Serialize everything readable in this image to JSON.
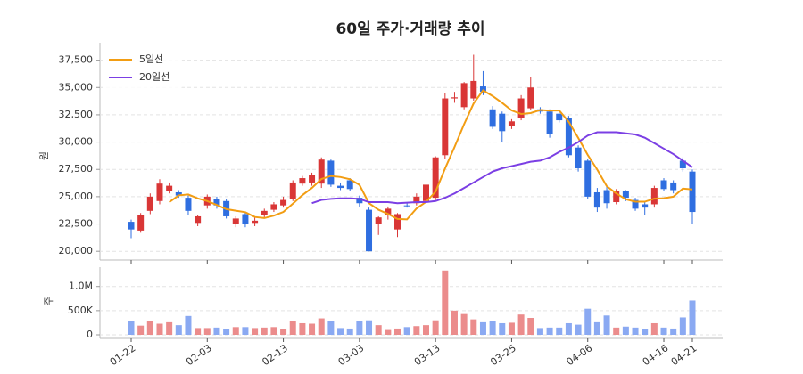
{
  "chart_data": {
    "type": "candlestick",
    "title": "60일 주가·거래량 추이",
    "ylabel": "원",
    "categories": [
      "01-22",
      null,
      null,
      null,
      null,
      null,
      null,
      null,
      "02-03",
      null,
      null,
      null,
      null,
      null,
      null,
      null,
      "02-13",
      null,
      null,
      null,
      null,
      null,
      null,
      null,
      "03-03",
      null,
      null,
      null,
      null,
      null,
      null,
      null,
      "03-13",
      null,
      null,
      null,
      null,
      null,
      null,
      null,
      "03-25",
      null,
      null,
      null,
      null,
      null,
      null,
      null,
      "04-06",
      null,
      null,
      null,
      null,
      null,
      null,
      null,
      "04-16",
      null,
      null,
      "04-21"
    ],
    "open": [
      22700,
      21900,
      23700,
      24600,
      25500,
      25400,
      24900,
      22600,
      24200,
      24800,
      24600,
      22500,
      23400,
      22600,
      23300,
      23800,
      24200,
      24800,
      26200,
      26300,
      26200,
      28300,
      26000,
      26500,
      24900,
      23800,
      22500,
      23300,
      22000,
      24200,
      24400,
      24600,
      24900,
      28800,
      34000,
      33200,
      34000,
      35100,
      33000,
      32600,
      31500,
      32200,
      33100,
      33000,
      32800,
      32600,
      32200,
      29500,
      28300,
      25400,
      25600,
      24500,
      25500,
      24700,
      24300,
      24300,
      26500,
      26300,
      28300,
      27300
    ],
    "high": [
      22900,
      23500,
      25300,
      26600,
      26300,
      25600,
      25100,
      23300,
      25200,
      25000,
      24800,
      23200,
      23600,
      23100,
      23900,
      24500,
      25000,
      26500,
      26900,
      27200,
      28600,
      28400,
      26300,
      26700,
      25100,
      24000,
      23200,
      24100,
      23500,
      24500,
      25300,
      26400,
      28700,
      34500,
      34600,
      35500,
      38000,
      36500,
      33300,
      32800,
      32100,
      34300,
      36000,
      33200,
      33000,
      32800,
      32400,
      29700,
      28500,
      25800,
      25900,
      25700,
      25600,
      24900,
      24500,
      26000,
      26700,
      26500,
      28600,
      27500
    ],
    "low": [
      21200,
      21700,
      23400,
      24300,
      25300,
      24900,
      23300,
      22300,
      23900,
      23900,
      23000,
      22200,
      22200,
      22300,
      23100,
      23600,
      24000,
      24600,
      26000,
      26000,
      25800,
      25900,
      25600,
      25500,
      24100,
      20000,
      21500,
      22900,
      21300,
      24000,
      24200,
      24400,
      24700,
      28500,
      33600,
      33000,
      33800,
      34300,
      31200,
      30000,
      31200,
      32000,
      32900,
      32600,
      30400,
      31800,
      28600,
      27300,
      24800,
      23600,
      23900,
      24300,
      24600,
      23700,
      23300,
      24000,
      25500,
      25300,
      27300,
      22500
    ],
    "close": [
      22000,
      23300,
      25000,
      26200,
      26000,
      25100,
      23700,
      23200,
      25000,
      24200,
      23200,
      23000,
      22500,
      22800,
      23700,
      24300,
      24700,
      26300,
      26700,
      27000,
      28400,
      26100,
      25800,
      25700,
      24400,
      20000,
      23100,
      23900,
      23400,
      24200,
      25000,
      26100,
      28600,
      34000,
      34100,
      35400,
      35600,
      34600,
      31400,
      31000,
      31900,
      34000,
      35000,
      32800,
      30700,
      32000,
      28800,
      27600,
      25000,
      24000,
      24400,
      25500,
      24900,
      23900,
      24000,
      25800,
      25700,
      25600,
      27600,
      23600
    ],
    "up_color": "#d93636",
    "down_color": "#2f6ee0",
    "series": [
      {
        "name": "5일선",
        "color": "#f29d13",
        "values": [
          null,
          null,
          null,
          null,
          24500,
          25120,
          25200,
          24840,
          24600,
          24240,
          23860,
          23720,
          23580,
          23140,
          23040,
          23260,
          23600,
          24360,
          25140,
          25800,
          26620,
          26900,
          26800,
          26600,
          26080,
          24400,
          23800,
          23420,
          22960,
          22920,
          23920,
          24520,
          25460,
          27580,
          29560,
          31640,
          33540,
          34740,
          34220,
          33600,
          32900,
          32580,
          32660,
          32940,
          32880,
          32900,
          31860,
          30380,
          28820,
          27480,
          25960,
          25300,
          24760,
          24540,
          24540,
          24820,
          24860,
          25000,
          25740,
          25660
        ]
      },
      {
        "name": "20일선",
        "color": "#7b3fe4",
        "values": [
          null,
          null,
          null,
          null,
          null,
          null,
          null,
          null,
          null,
          null,
          null,
          null,
          null,
          null,
          null,
          null,
          null,
          null,
          null,
          24400,
          24700,
          24800,
          24850,
          24850,
          24800,
          24500,
          24500,
          24500,
          24400,
          24450,
          24500,
          24500,
          24600,
          24900,
          25300,
          25800,
          26300,
          26800,
          27300,
          27600,
          27800,
          28000,
          28200,
          28300,
          28600,
          29100,
          29500,
          30000,
          30600,
          30900,
          30900,
          30900,
          30800,
          30700,
          30400,
          29900,
          29400,
          28900,
          28300,
          27700
        ]
      }
    ],
    "ylim": [
      19200,
      39100
    ],
    "yticks": [
      {
        "value": 20000,
        "label": "20,000"
      },
      {
        "value": 22500,
        "label": "22,500"
      },
      {
        "value": 25000,
        "label": "25,000"
      },
      {
        "value": 27500,
        "label": "27,500"
      },
      {
        "value": 30000,
        "label": "30,000"
      },
      {
        "value": 32500,
        "label": "32,500"
      },
      {
        "value": 35000,
        "label": "35,000"
      },
      {
        "value": 37500,
        "label": "37,500"
      }
    ],
    "grid": true,
    "legend": "upper left",
    "volume": {
      "ylabel": "주",
      "up_color": "#eb8c8c",
      "down_color": "#8aa9f2",
      "values": [
        290000,
        190000,
        290000,
        230000,
        260000,
        200000,
        390000,
        140000,
        140000,
        150000,
        120000,
        160000,
        160000,
        140000,
        150000,
        160000,
        120000,
        280000,
        240000,
        230000,
        340000,
        290000,
        140000,
        130000,
        280000,
        300000,
        200000,
        100000,
        130000,
        160000,
        180000,
        200000,
        300000,
        1330000,
        500000,
        430000,
        320000,
        260000,
        290000,
        240000,
        250000,
        420000,
        350000,
        140000,
        150000,
        150000,
        240000,
        210000,
        540000,
        260000,
        400000,
        150000,
        170000,
        150000,
        120000,
        240000,
        150000,
        130000,
        360000,
        710000
      ],
      "ylim": [
        0,
        1400000
      ],
      "yticks": [
        0,
        {
          "value": 500000,
          "label": "500K"
        },
        {
          "value": 1000000,
          "label": "1.0M"
        }
      ]
    }
  }
}
